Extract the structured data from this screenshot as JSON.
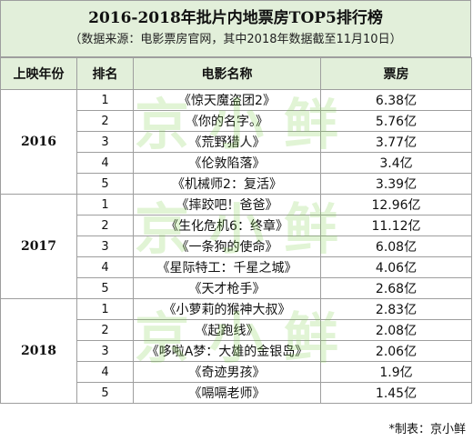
{
  "header": {
    "title": "2016-2018年批片内地票房TOP5排行榜",
    "subtitle": "（数据来源：电影票房官网，其中2018年数据截至11月10日）"
  },
  "columns": [
    "上映年份",
    "排名",
    "电影名称",
    "票房"
  ],
  "years": [
    {
      "year": "2016",
      "rows": [
        {
          "rank": "1",
          "title": "《惊天魔盗团2》",
          "box_office": "6.38亿"
        },
        {
          "rank": "2",
          "title": "《你的名字。》",
          "box_office": "5.76亿"
        },
        {
          "rank": "3",
          "title": "《荒野猎人》",
          "box_office": "3.77亿"
        },
        {
          "rank": "4",
          "title": "《伦敦陷落》",
          "box_office": "3.4亿"
        },
        {
          "rank": "5",
          "title": "《机械师2：复活》",
          "box_office": "3.39亿"
        }
      ]
    },
    {
      "year": "2017",
      "rows": [
        {
          "rank": "1",
          "title": "《摔跤吧！爸爸》",
          "box_office": "12.96亿"
        },
        {
          "rank": "2",
          "title": "《生化危机6：终章》",
          "box_office": "11.12亿"
        },
        {
          "rank": "3",
          "title": "《一条狗的使命》",
          "box_office": "6.08亿"
        },
        {
          "rank": "4",
          "title": "《星际特工：千星之城》",
          "box_office": "4.06亿"
        },
        {
          "rank": "5",
          "title": "《天才枪手》",
          "box_office": "2.68亿"
        }
      ]
    },
    {
      "year": "2018",
      "rows": [
        {
          "rank": "1",
          "title": "《小萝莉的猴神大叔》",
          "box_office": "2.83亿"
        },
        {
          "rank": "2",
          "title": "《起跑线》",
          "box_office": "2.08亿"
        },
        {
          "rank": "3",
          "title": "《哆啦A梦：大雄的金银岛》",
          "box_office": "2.06亿"
        },
        {
          "rank": "4",
          "title": "《奇迹男孩》",
          "box_office": "1.9亿"
        },
        {
          "rank": "5",
          "title": "《嗝嗝老师》",
          "box_office": "1.45亿"
        }
      ]
    }
  ],
  "footer": {
    "credit": "*制表：京小鲜"
  },
  "watermark": {
    "text": "京小鲜"
  },
  "colors": {
    "header_bg": "#e2efda",
    "border": "#9e9e9e",
    "watermark": "#76cc40"
  }
}
